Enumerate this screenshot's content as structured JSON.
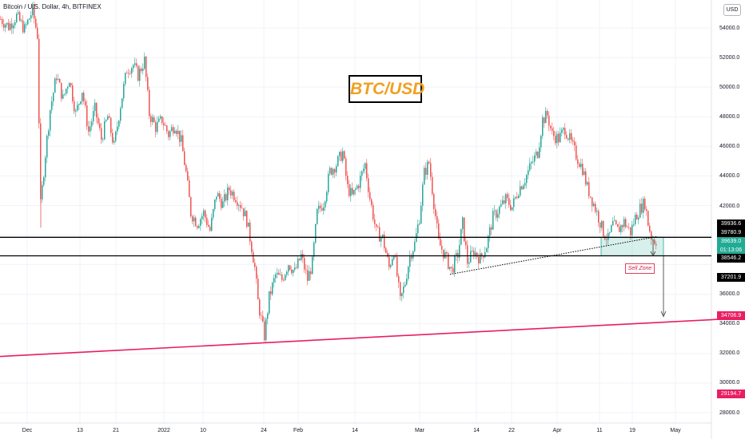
{
  "header": {
    "title": "Bitcoin / U.S. Dollar, 4h, BITFINEX",
    "currency_button": "USD"
  },
  "annotation": {
    "box_label": "BTC/USD",
    "sell_zone_label": "Sell Zone"
  },
  "colors": {
    "up": "#26a69a",
    "down": "#ef5350",
    "trendline": "#e91e63",
    "zone": "#22ab94",
    "box_text": "#f0a020"
  },
  "price_axis": {
    "ticks": [
      "54000.0",
      "52000.0",
      "50000.0",
      "48000.0",
      "46000.0",
      "44000.0",
      "42000.0",
      "36000.0",
      "34000.0",
      "32000.0",
      "30000.0",
      "28000.0"
    ],
    "tags": {
      "t1": "39936.6",
      "t2": "39780.9",
      "current": "39639.0",
      "countdown": "01:13:06",
      "t4": "38546.2",
      "t5": "37201.9",
      "target": "34706.9",
      "t7": "29194.7"
    }
  },
  "time_axis": {
    "ticks": [
      "Dec",
      "13",
      "21",
      "2022",
      "10",
      "24",
      "Feb",
      "14",
      "Mar",
      "14",
      "22",
      "Apr",
      "11",
      "19",
      "May"
    ]
  },
  "chart_data": {
    "type": "candlestick",
    "symbol": "BTC/USD",
    "interval": "4h",
    "exchange": "BITFINEX",
    "ylim": [
      27000,
      56000
    ],
    "horizontal_levels": [
      39850,
      38600
    ],
    "sell_zone": [
      38600,
      39850
    ],
    "rising_trendline": [
      [
        0,
        31800
      ],
      [
        932,
        34400
      ]
    ],
    "target_level": 34706.9,
    "path_points": [
      [
        0,
        54600
      ],
      [
        10,
        54100
      ],
      [
        20,
        54800
      ],
      [
        30,
        53900
      ],
      [
        40,
        55200
      ],
      [
        46,
        53500
      ],
      [
        50,
        42000
      ],
      [
        56,
        45500
      ],
      [
        62,
        48500
      ],
      [
        70,
        50800
      ],
      [
        78,
        49200
      ],
      [
        86,
        50600
      ],
      [
        94,
        48200
      ],
      [
        102,
        49800
      ],
      [
        110,
        47000
      ],
      [
        118,
        48500
      ],
      [
        126,
        46500
      ],
      [
        134,
        48000
      ],
      [
        142,
        46000
      ],
      [
        150,
        48800
      ],
      [
        158,
        51200
      ],
      [
        166,
        51500
      ],
      [
        172,
        50800
      ],
      [
        180,
        51800
      ],
      [
        186,
        48200
      ],
      [
        194,
        47300
      ],
      [
        202,
        47800
      ],
      [
        210,
        46800
      ],
      [
        218,
        47500
      ],
      [
        226,
        46300
      ],
      [
        232,
        44200
      ],
      [
        238,
        41500
      ],
      [
        246,
        40800
      ],
      [
        254,
        41500
      ],
      [
        262,
        40300
      ],
      [
        270,
        42800
      ],
      [
        278,
        42100
      ],
      [
        286,
        43100
      ],
      [
        294,
        42600
      ],
      [
        302,
        41900
      ],
      [
        308,
        41000
      ],
      [
        314,
        39200
      ],
      [
        318,
        37800
      ],
      [
        322,
        35500
      ],
      [
        326,
        34300
      ],
      [
        330,
        33200
      ],
      [
        336,
        35800
      ],
      [
        344,
        37300
      ],
      [
        352,
        37000
      ],
      [
        360,
        38100
      ],
      [
        368,
        37500
      ],
      [
        376,
        38600
      ],
      [
        384,
        37000
      ],
      [
        390,
        38100
      ],
      [
        396,
        41500
      ],
      [
        404,
        42200
      ],
      [
        412,
        44300
      ],
      [
        420,
        44800
      ],
      [
        428,
        45600
      ],
      [
        434,
        43200
      ],
      [
        440,
        42600
      ],
      [
        448,
        43500
      ],
      [
        456,
        44800
      ],
      [
        462,
        42500
      ],
      [
        470,
        40200
      ],
      [
        478,
        39800
      ],
      [
        486,
        37800
      ],
      [
        492,
        39000
      ],
      [
        500,
        35500
      ],
      [
        506,
        36800
      ],
      [
        512,
        38600
      ],
      [
        518,
        39400
      ],
      [
        524,
        41200
      ],
      [
        530,
        44200
      ],
      [
        536,
        44900
      ],
      [
        542,
        42200
      ],
      [
        548,
        39500
      ],
      [
        556,
        38600
      ],
      [
        564,
        37600
      ],
      [
        572,
        38700
      ],
      [
        578,
        40800
      ],
      [
        584,
        38200
      ],
      [
        592,
        38900
      ],
      [
        600,
        38400
      ],
      [
        608,
        39300
      ],
      [
        616,
        41200
      ],
      [
        624,
        41800
      ],
      [
        632,
        42400
      ],
      [
        640,
        41900
      ],
      [
        648,
        43100
      ],
      [
        656,
        43800
      ],
      [
        664,
        44800
      ],
      [
        672,
        45600
      ],
      [
        678,
        47800
      ],
      [
        684,
        48100
      ],
      [
        690,
        46800
      ],
      [
        698,
        46500
      ],
      [
        706,
        47200
      ],
      [
        714,
        46200
      ],
      [
        720,
        45400
      ],
      [
        728,
        44500
      ],
      [
        734,
        43200
      ],
      [
        742,
        42100
      ],
      [
        748,
        41200
      ],
      [
        754,
        40200
      ],
      [
        760,
        39700
      ],
      [
        766,
        40700
      ],
      [
        772,
        40300
      ],
      [
        780,
        40900
      ],
      [
        788,
        40200
      ],
      [
        794,
        41200
      ],
      [
        800,
        41800
      ],
      [
        806,
        42200
      ],
      [
        810,
        40800
      ],
      [
        814,
        39900
      ],
      [
        818,
        39650
      ],
      [
        822,
        39639
      ]
    ]
  }
}
